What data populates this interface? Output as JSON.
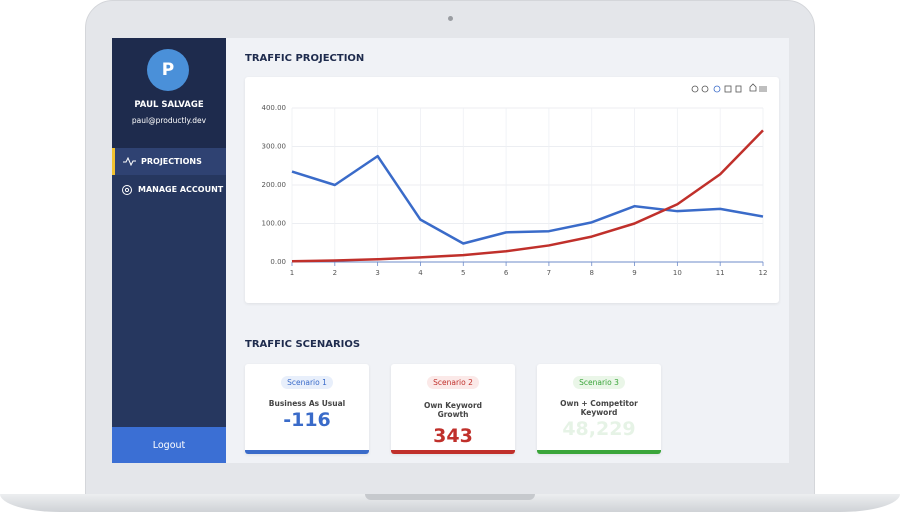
{
  "sidebar": {
    "avatar": "P",
    "name": "PAUL SALVAGE",
    "email": "paul@productly.dev",
    "menu": [
      "PROJECTIONS",
      "MANAGE ACCOUNT"
    ],
    "logout": "Logout"
  },
  "chart_section": {
    "title": "TRAFFIC PROJECTION"
  },
  "chart_data": {
    "type": "line",
    "x": [
      1,
      2,
      3,
      4,
      5,
      6,
      7,
      8,
      9,
      10,
      11,
      12
    ],
    "xlim": [
      1,
      12
    ],
    "xticks": [
      1,
      2,
      3,
      4,
      5,
      6,
      7,
      8,
      9,
      10,
      11,
      12
    ],
    "ylim": [
      0,
      400
    ],
    "yticks": [
      {
        "value": 0,
        "label": "0.00"
      },
      {
        "value": 100,
        "label": "100.00"
      },
      {
        "value": 200,
        "label": "200.00"
      },
      {
        "value": 300,
        "label": "300.00"
      },
      {
        "value": 400,
        "label": "400.00"
      }
    ],
    "grid": true,
    "series": [
      {
        "color": "#3a6bc9",
        "values": [
          235,
          200,
          275,
          110,
          48,
          77,
          80,
          103,
          145,
          132,
          138,
          118
        ]
      },
      {
        "color": "#c0302b",
        "values": [
          2,
          4,
          7,
          12,
          18,
          28,
          43,
          66,
          100,
          150,
          228,
          342
        ]
      }
    ]
  },
  "scenarios": {
    "title": "TRAFFIC SCENARIOS",
    "cards": [
      {
        "badge": "Scenario 1",
        "label": "Business As Usual",
        "value": "-116"
      },
      {
        "badge": "Scenario 2",
        "label": "Own Keyword Growth",
        "value": "343"
      },
      {
        "badge": "Scenario 3",
        "label": "Own + Competitor Keyword",
        "value": "48,229"
      }
    ]
  }
}
